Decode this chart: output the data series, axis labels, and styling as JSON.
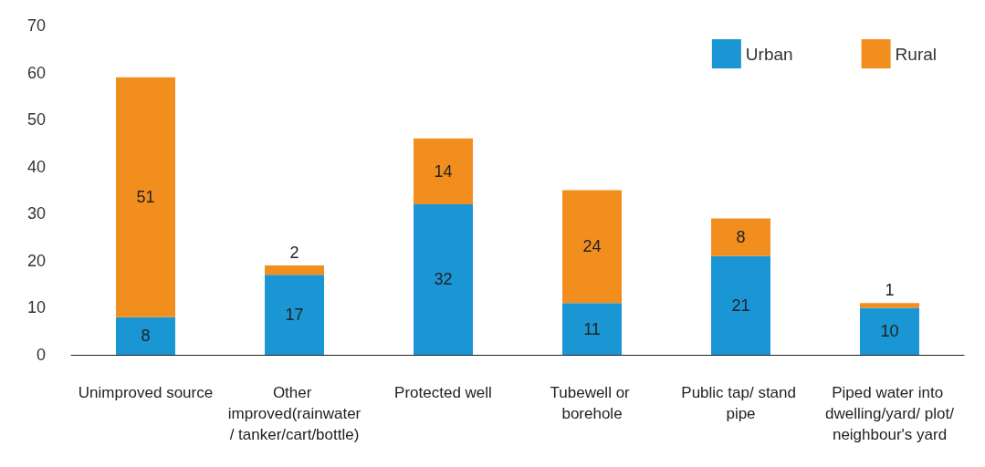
{
  "chart_data": {
    "type": "bar",
    "stacked": true,
    "categories": [
      "Unimproved source",
      "Other improved(rainwater/ tanker/cart/bottle)",
      "Protected well",
      "Tubewell or borehole",
      "Public tap/ stand pipe",
      "Piped water into dwelling/yard/ plot/neighbour's yard"
    ],
    "series": [
      {
        "name": "Urban",
        "color": "#1a96d4",
        "values": [
          8,
          17,
          32,
          11,
          21,
          10
        ]
      },
      {
        "name": "Rural",
        "color": "#f28e1e",
        "values": [
          51,
          2,
          14,
          24,
          8,
          1
        ]
      }
    ],
    "ylim": [
      0,
      70
    ],
    "yticks": [
      0,
      10,
      20,
      30,
      40,
      50,
      60,
      70
    ],
    "data_labels": true,
    "grid": false,
    "legend": "top right"
  }
}
